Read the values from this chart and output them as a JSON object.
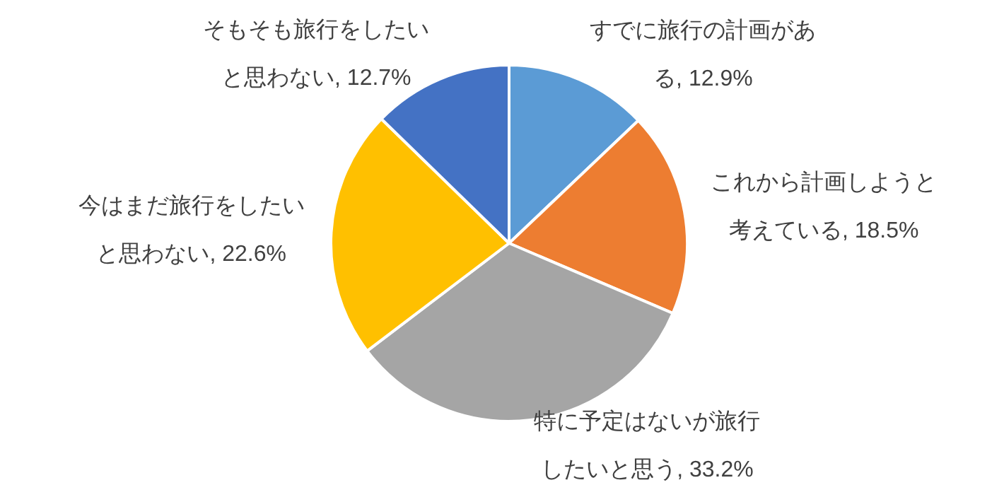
{
  "chart_data": {
    "type": "pie",
    "categories": [
      "すでに旅行の計画がある",
      "これから計画しようと考えている",
      "特に予定はないが旅行したいと思う",
      "今はまだ旅行をしたいと思わない",
      "そもそも旅行をしたいと思わない"
    ],
    "values": [
      12.9,
      18.5,
      33.2,
      22.6,
      12.7
    ],
    "value_labels": [
      "12.9%",
      "18.5%",
      "33.2%",
      "22.6%",
      "12.7%"
    ],
    "colors": [
      "#5b9bd5",
      "#ed7d31",
      "#a5a5a5",
      "#ffc000",
      "#4472c4"
    ],
    "legend": false
  }
}
